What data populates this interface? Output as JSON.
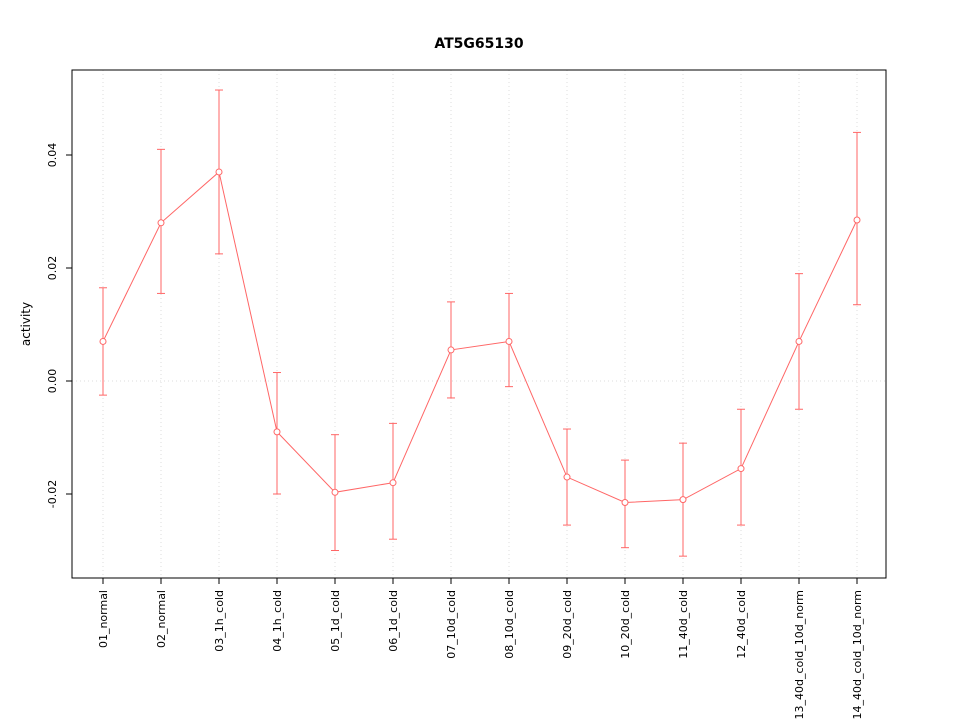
{
  "chart_data": {
    "type": "line",
    "title": "AT5G65130",
    "xlabel": "",
    "ylabel": "activity",
    "ylim": [
      -0.034,
      0.054
    ],
    "yticks": [
      -0.02,
      0.0,
      0.02,
      0.04
    ],
    "ytick_labels": [
      "-0.02",
      "0.00",
      "0.02",
      "0.04"
    ],
    "grid": "dotted light-gray vertical line at each category, dotted horizontal line at y=0",
    "legend": "none",
    "color": "#ff6666",
    "categories": [
      "01_normal",
      "02_normal",
      "03_1h_cold",
      "04_1h_cold",
      "05_1d_cold",
      "06_1d_cold",
      "07_10d_cold",
      "08_10d_cold",
      "09_20d_cold",
      "10_20d_cold",
      "11_40d_cold",
      "12_40d_cold",
      "13_40d_cold_10d_norm",
      "14_40d_cold_10d_norm"
    ],
    "series": [
      {
        "name": "activity",
        "values": [
          0.007,
          0.028,
          0.037,
          -0.009,
          -0.0197,
          -0.018,
          0.0055,
          0.007,
          -0.017,
          -0.0215,
          -0.021,
          -0.0155,
          0.007,
          0.0285
        ],
        "error_low": [
          -0.0025,
          0.0155,
          0.0225,
          -0.02,
          -0.03,
          -0.028,
          -0.003,
          -0.001,
          -0.0255,
          -0.0295,
          -0.031,
          -0.0255,
          -0.005,
          0.0135
        ],
        "error_high": [
          0.0165,
          0.041,
          0.0515,
          0.0015,
          -0.0095,
          -0.0075,
          0.014,
          0.0155,
          -0.0085,
          -0.014,
          -0.011,
          -0.005,
          0.019,
          0.044
        ]
      }
    ]
  }
}
